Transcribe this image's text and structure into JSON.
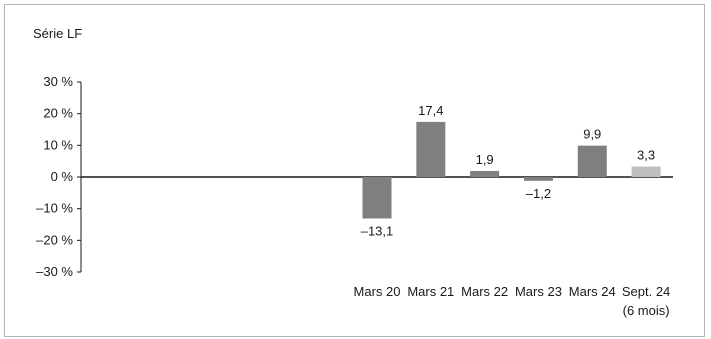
{
  "chart_data": {
    "type": "bar",
    "title": "Série LF",
    "xlabel": "",
    "ylabel": "",
    "ylim": [
      -30,
      30
    ],
    "yticks": [
      30,
      20,
      10,
      0,
      -10,
      -20,
      -30
    ],
    "ytick_labels": [
      "30 %",
      "20 %",
      "10 %",
      "0 %",
      "–10 %",
      "–20 %",
      "–30 %"
    ],
    "grid": false,
    "total_slots": 11,
    "categories": [
      "",
      "",
      "",
      "",
      "",
      "Mars 20",
      "Mars 21",
      "Mars 22",
      "Mars 23",
      "Mars 24",
      "Sept. 24"
    ],
    "category_sublabels": [
      "",
      "",
      "",
      "",
      "",
      "",
      "",
      "",
      "",
      "",
      "(6 mois)"
    ],
    "values": [
      null,
      null,
      null,
      null,
      null,
      -13.1,
      17.4,
      1.9,
      -1.2,
      9.9,
      3.3
    ],
    "value_labels": [
      "",
      "",
      "",
      "",
      "",
      "–13,1",
      "17,4",
      "1,9",
      "–1,2",
      "9,9",
      "3,3"
    ],
    "bar_colors": [
      "#7f7f7f",
      "#7f7f7f",
      "#7f7f7f",
      "#7f7f7f",
      "#7f7f7f",
      "#7f7f7f",
      "#7f7f7f",
      "#7f7f7f",
      "#7f7f7f",
      "#7f7f7f",
      "#bfbfbf"
    ]
  }
}
